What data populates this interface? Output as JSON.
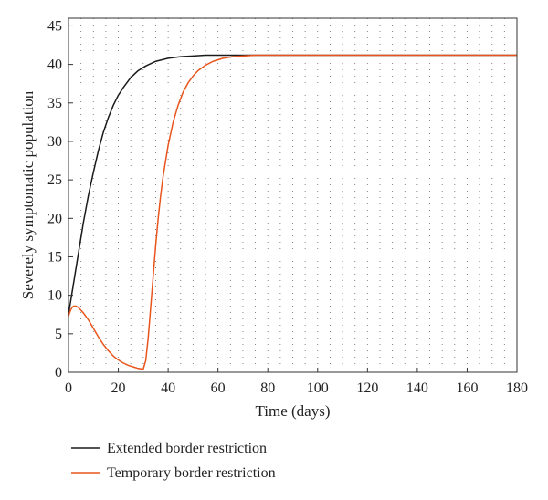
{
  "chart_data": {
    "type": "line",
    "title": "",
    "xlabel": "Time (days)",
    "ylabel": "Severely symptomatic population",
    "xlim": [
      0,
      180
    ],
    "ylim": [
      0,
      46
    ],
    "xticks": [
      0,
      20,
      40,
      60,
      80,
      100,
      120,
      140,
      160,
      180
    ],
    "yticks": [
      0,
      5,
      10,
      15,
      20,
      25,
      30,
      35,
      40,
      45
    ],
    "grid": "dotted",
    "legend_position": "bottom-left, below plot",
    "series": [
      {
        "name": "Extended border restriction",
        "color": "#1a1a1a",
        "x": [
          0,
          2,
          4,
          6,
          8,
          10,
          12,
          14,
          16,
          18,
          20,
          22,
          25,
          28,
          31,
          35,
          40,
          45,
          50,
          55,
          60,
          70,
          80,
          100,
          120,
          140,
          160,
          180
        ],
        "y": [
          7.5,
          11.5,
          15.5,
          19.5,
          23,
          26,
          28.8,
          31.2,
          33.1,
          34.7,
          36.0,
          37.0,
          38.3,
          39.2,
          39.8,
          40.4,
          40.8,
          41.0,
          41.1,
          41.2,
          41.2,
          41.2,
          41.2,
          41.2,
          41.2,
          41.2,
          41.2,
          41.2
        ]
      },
      {
        "name": "Temporary border restriction",
        "color": "#e8541c",
        "x": [
          0,
          1,
          2,
          3,
          4,
          6,
          8,
          10,
          12,
          14,
          16,
          18,
          20,
          22,
          24,
          26,
          28,
          30,
          31,
          32,
          33,
          34,
          35,
          36,
          37,
          38,
          40,
          42,
          44,
          46,
          48,
          50,
          52,
          55,
          58,
          62,
          66,
          70,
          75,
          80,
          90,
          100,
          120,
          140,
          160,
          180
        ],
        "y": [
          7.3,
          8.2,
          8.6,
          8.6,
          8.4,
          7.7,
          6.8,
          5.7,
          4.6,
          3.6,
          2.8,
          2.1,
          1.6,
          1.2,
          0.9,
          0.7,
          0.5,
          0.4,
          1.5,
          4.5,
          8.5,
          12.5,
          16.5,
          20.0,
          23.0,
          25.5,
          29.5,
          32.5,
          34.7,
          36.4,
          37.6,
          38.5,
          39.2,
          39.9,
          40.4,
          40.8,
          41.0,
          41.1,
          41.2,
          41.2,
          41.2,
          41.2,
          41.2,
          41.2,
          41.2,
          41.2
        ]
      }
    ]
  }
}
